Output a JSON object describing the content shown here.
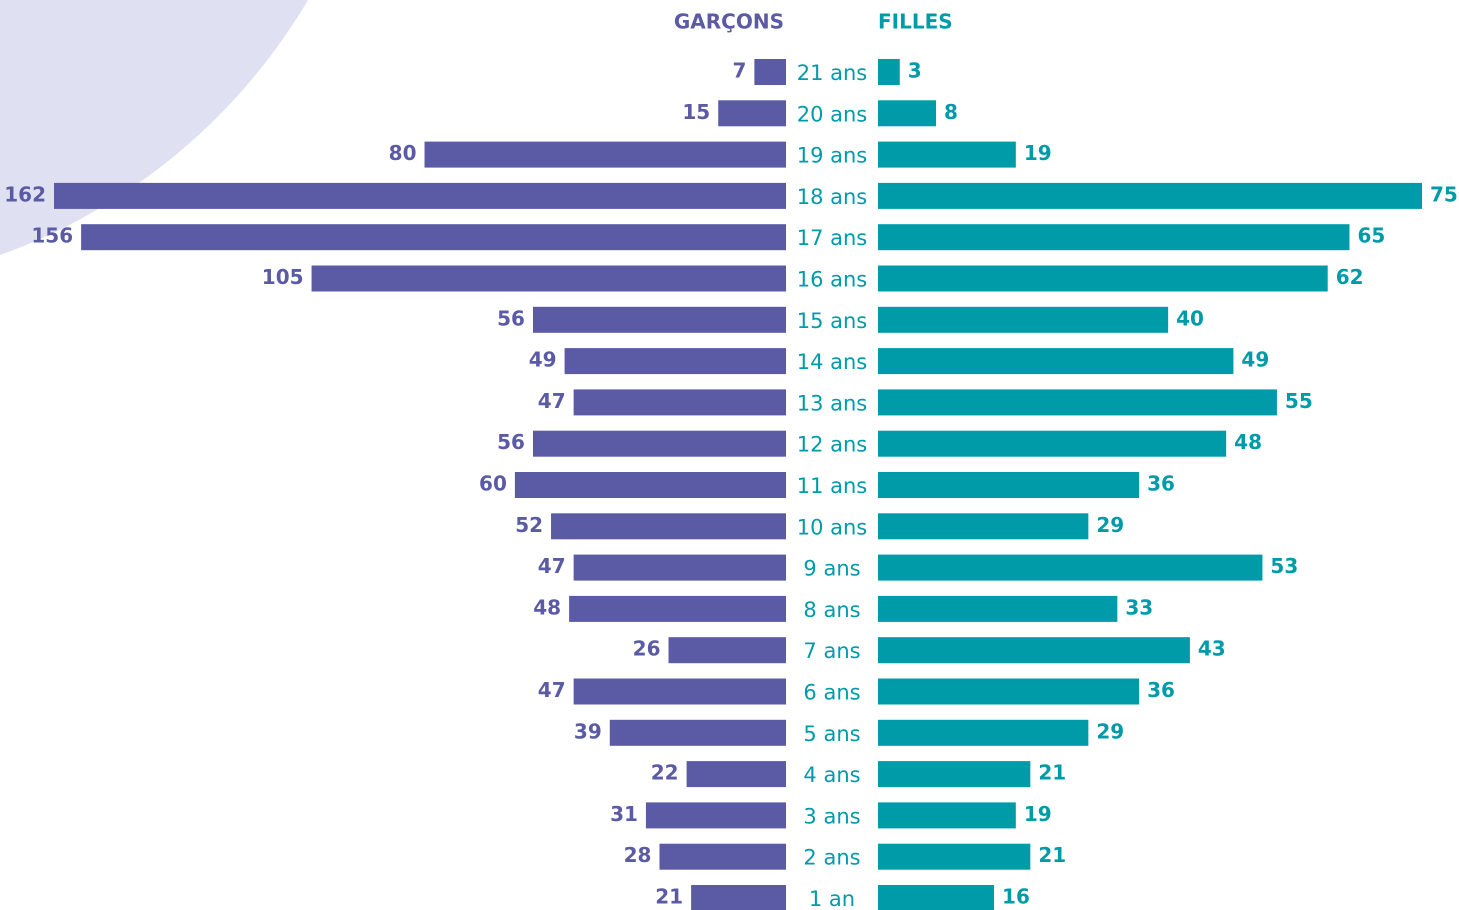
{
  "chart_data": {
    "type": "pyramid",
    "categories": [
      "21 ans",
      "20 ans",
      "19 ans",
      "18 ans",
      "17 ans",
      "16 ans",
      "15 ans",
      "14 ans",
      "13 ans",
      "12 ans",
      "11 ans",
      "10 ans",
      "9 ans",
      "8 ans",
      "7 ans",
      "6 ans",
      "5 ans",
      "4 ans",
      "3 ans",
      "2 ans",
      "1 an"
    ],
    "series": [
      {
        "name": "GARÇONS",
        "color": "#5b5aa5",
        "xlim": [
          0,
          162
        ],
        "values": [
          7,
          15,
          80,
          162,
          156,
          105,
          56,
          49,
          47,
          56,
          60,
          52,
          47,
          48,
          26,
          47,
          39,
          22,
          31,
          28,
          21
        ]
      },
      {
        "name": "FILLES",
        "color": "#009ba8",
        "xlim": [
          0,
          75
        ],
        "values": [
          3,
          8,
          19,
          75,
          65,
          62,
          40,
          49,
          55,
          48,
          36,
          29,
          53,
          33,
          43,
          36,
          29,
          21,
          19,
          21,
          16
        ]
      }
    ],
    "category_color": "#009ba8"
  }
}
